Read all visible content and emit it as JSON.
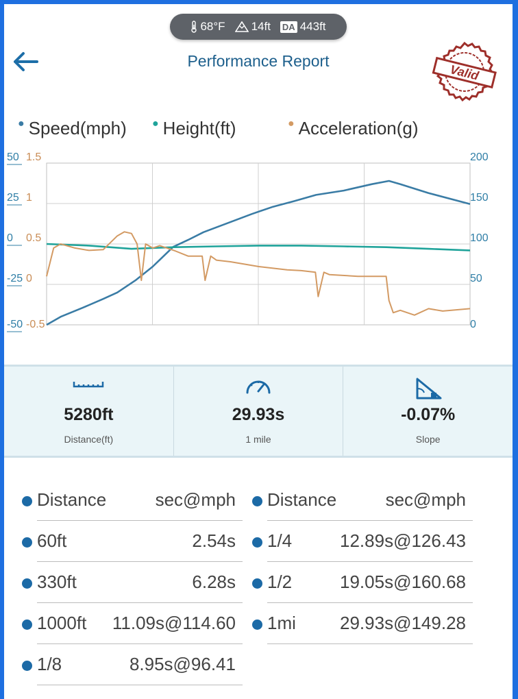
{
  "conditions": {
    "temperature": "68°F",
    "altitude": "14ft",
    "da_label": "DA",
    "density_altitude": "443ft"
  },
  "header": {
    "title": "Performance Report",
    "stamp_text": "Valid",
    "back_icon": "arrow-left-icon"
  },
  "legend": [
    {
      "label": "Speed(mph)",
      "color": "#3a7ca5"
    },
    {
      "label": "Height(ft)",
      "color": "#1fa39a"
    },
    {
      "label": "Acceleration(g)",
      "color": "#d39a63"
    }
  ],
  "chart_data": {
    "type": "line",
    "x_range": [
      0,
      29.93
    ],
    "axes": {
      "height_ticks": [
        "50",
        "25",
        "0",
        "-25",
        "-50"
      ],
      "accel_ticks": [
        "1.5",
        "1",
        "0.5",
        "0",
        "-0.5"
      ],
      "speed_ticks": [
        "200",
        "150",
        "100",
        "50",
        "0"
      ]
    },
    "grid": true,
    "series": [
      {
        "name": "Speed(mph)",
        "axis": "speed",
        "ylim": [
          0,
          200
        ],
        "x": [
          0,
          1,
          2.54,
          4,
          5,
          6.28,
          7.5,
          8.95,
          10,
          11.09,
          12.89,
          14.5,
          16,
          17.5,
          19.05,
          21,
          23,
          24.2,
          25,
          27,
          29.93
        ],
        "values": [
          0,
          10,
          21,
          32,
          40,
          55,
          72,
          96.41,
          105,
          114.6,
          126.43,
          137,
          146,
          153,
          160.68,
          166,
          174,
          178,
          174,
          163,
          149.28
        ]
      },
      {
        "name": "Height(ft)",
        "axis": "height",
        "ylim": [
          -50,
          50
        ],
        "x": [
          0,
          3,
          6,
          9,
          12,
          15,
          18,
          21,
          24,
          27,
          29.93
        ],
        "values": [
          0,
          -1,
          -3,
          -2,
          -1.5,
          -1,
          -1,
          -1.5,
          -2,
          -3,
          -4
        ]
      },
      {
        "name": "Acceleration(g)",
        "axis": "accel",
        "ylim": [
          -0.5,
          1.5
        ],
        "x": [
          0,
          0.5,
          1,
          2,
          3,
          4,
          5,
          5.5,
          6,
          6.4,
          6.7,
          7,
          7.5,
          8,
          9,
          10,
          11,
          11.2,
          11.6,
          12,
          13,
          14,
          15,
          16,
          17,
          18,
          19,
          19.2,
          19.6,
          20,
          22,
          24,
          24.2,
          24.5,
          25,
          26,
          27,
          28,
          29.93
        ],
        "values": [
          0.1,
          0.45,
          0.5,
          0.45,
          0.42,
          0.43,
          0.6,
          0.65,
          0.63,
          0.5,
          0.05,
          0.5,
          0.45,
          0.48,
          0.42,
          0.35,
          0.35,
          0.05,
          0.35,
          0.3,
          0.28,
          0.25,
          0.22,
          0.2,
          0.18,
          0.17,
          0.15,
          -0.15,
          0.15,
          0.12,
          0.1,
          0.1,
          -0.2,
          -0.35,
          -0.32,
          -0.38,
          -0.3,
          -0.33,
          -0.3
        ]
      }
    ]
  },
  "stats": [
    {
      "icon": "ruler-icon",
      "value": "5280ft",
      "label": "Distance(ft)"
    },
    {
      "icon": "speedometer-icon",
      "value": "29.93s",
      "label": "1 mile"
    },
    {
      "icon": "slope-icon",
      "value": "-0.07%",
      "label": "Slope"
    }
  ],
  "table": {
    "left": {
      "header": [
        "Distance",
        "sec@mph"
      ],
      "rows": [
        [
          "60ft",
          "2.54s"
        ],
        [
          "330ft",
          "6.28s"
        ],
        [
          "1000ft",
          "11.09s@114.60"
        ],
        [
          "1/8",
          "8.95s@96.41"
        ]
      ]
    },
    "right": {
      "header": [
        "Distance",
        "sec@mph"
      ],
      "rows": [
        [
          "1/4",
          "12.89s@126.43"
        ],
        [
          "1/2",
          "19.05s@160.68"
        ],
        [
          "1mi",
          "29.93s@149.28"
        ]
      ]
    }
  }
}
